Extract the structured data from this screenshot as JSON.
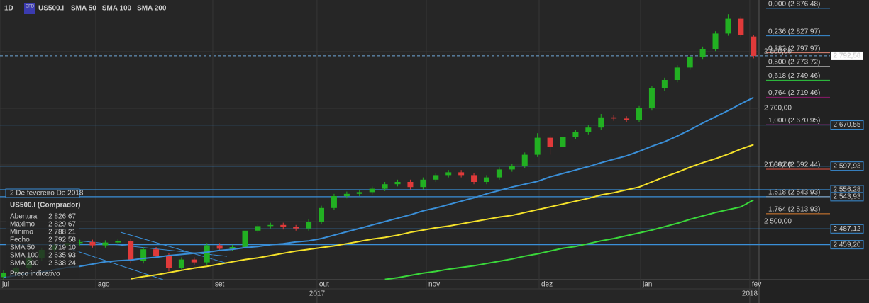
{
  "chart_data": {
    "type": "candlestick",
    "interval": "1D",
    "badge": "CFD",
    "title": "US500.I",
    "up_color": "#22b022",
    "down_color": "#e03a3a",
    "open": [
      2402,
      2410,
      2418,
      2435,
      2450,
      2458,
      2462,
      2464,
      2458,
      2463,
      2465,
      2430,
      2451,
      2440,
      2418,
      2433,
      2428,
      2458,
      2452,
      2455,
      2484,
      2492,
      2494,
      2490,
      2488,
      2500,
      2524,
      2545,
      2549,
      2552,
      2558,
      2566,
      2570,
      2561,
      2574,
      2582,
      2587,
      2582,
      2570,
      2578,
      2592,
      2598,
      2618,
      2648,
      2632,
      2650,
      2658,
      2666,
      2684,
      2682,
      2680,
      2700,
      2735,
      2750,
      2772,
      2790,
      2805,
      2832,
      2858,
      2826.67
    ],
    "high": [
      2414,
      2422,
      2439,
      2454,
      2462,
      2466,
      2468,
      2468,
      2467,
      2469,
      2469,
      2455,
      2455,
      2444,
      2437,
      2437,
      2462,
      2462,
      2459,
      2488,
      2496,
      2498,
      2498,
      2494,
      2504,
      2528,
      2549,
      2553,
      2556,
      2562,
      2570,
      2574,
      2574,
      2578,
      2586,
      2591,
      2591,
      2586,
      2582,
      2596,
      2602,
      2622,
      2656,
      2652,
      2654,
      2662,
      2670,
      2690,
      2688,
      2686,
      2704,
      2739,
      2754,
      2776,
      2794,
      2809,
      2836,
      2866,
      2862,
      2829.67
    ],
    "low": [
      2398,
      2406,
      2414,
      2431,
      2446,
      2454,
      2458,
      2454,
      2454,
      2459,
      2426,
      2426,
      2436,
      2412,
      2414,
      2424,
      2424,
      2448,
      2448,
      2451,
      2480,
      2488,
      2486,
      2484,
      2484,
      2496,
      2520,
      2541,
      2545,
      2548,
      2554,
      2562,
      2557,
      2557,
      2570,
      2578,
      2578,
      2566,
      2566,
      2574,
      2588,
      2594,
      2614,
      2618,
      2628,
      2646,
      2654,
      2662,
      2678,
      2676,
      2676,
      2696,
      2731,
      2746,
      2768,
      2786,
      2801,
      2828,
      2826,
      2788.21
    ],
    "close": [
      2410,
      2418,
      2435,
      2450,
      2458,
      2462,
      2464,
      2458,
      2463,
      2465,
      2430,
      2451,
      2440,
      2418,
      2433,
      2428,
      2458,
      2452,
      2455,
      2484,
      2492,
      2494,
      2490,
      2488,
      2500,
      2524,
      2545,
      2549,
      2552,
      2558,
      2566,
      2570,
      2561,
      2574,
      2582,
      2587,
      2582,
      2570,
      2578,
      2592,
      2598,
      2618,
      2648,
      2632,
      2650,
      2658,
      2666,
      2684,
      2682,
      2680,
      2700,
      2735,
      2750,
      2772,
      2790,
      2805,
      2832,
      2858,
      2830,
      2792.58
    ],
    "series": [
      {
        "name": "SMA 50",
        "color": "#3a8fd8",
        "values": [
          2401,
          2405,
          2409,
          2411,
          2415,
          2419,
          2421,
          2425,
          2429,
          2431,
          2432,
          2435,
          2437,
          2440,
          2442,
          2444,
          2446,
          2449,
          2451,
          2454,
          2456,
          2459,
          2461,
          2464,
          2466,
          2470,
          2476,
          2482,
          2488,
          2494,
          2500,
          2506,
          2512,
          2519,
          2524,
          2530,
          2536,
          2542,
          2549,
          2555,
          2561,
          2566,
          2571,
          2579,
          2585,
          2591,
          2597,
          2604,
          2610,
          2616,
          2624,
          2633,
          2641,
          2651,
          2662,
          2674,
          2685,
          2696,
          2708,
          2719.1
        ]
      },
      {
        "name": "SMA 100",
        "color": "#f5e22a",
        "values": [
          null,
          null,
          null,
          null,
          null,
          null,
          null,
          null,
          null,
          null,
          2399,
          2403,
          2406,
          2410,
          2414,
          2418,
          2421,
          2425,
          2429,
          2433,
          2436,
          2440,
          2444,
          2448,
          2451,
          2454,
          2457,
          2461,
          2465,
          2469,
          2472,
          2476,
          2481,
          2485,
          2489,
          2492,
          2496,
          2500,
          2504,
          2508,
          2511,
          2516,
          2521,
          2526,
          2531,
          2536,
          2541,
          2547,
          2551,
          2556,
          2561,
          2570,
          2579,
          2587,
          2596,
          2604,
          2611,
          2619,
          2628,
          2635.93
        ]
      },
      {
        "name": "SMA 200",
        "color": "#3ad83a",
        "values": [
          null,
          null,
          null,
          null,
          null,
          null,
          null,
          null,
          null,
          null,
          null,
          null,
          null,
          null,
          null,
          null,
          null,
          null,
          null,
          null,
          null,
          null,
          null,
          null,
          null,
          null,
          null,
          null,
          null,
          null,
          2398,
          2401,
          2405,
          2409,
          2412,
          2416,
          2419,
          2422,
          2426,
          2430,
          2434,
          2439,
          2443,
          2448,
          2453,
          2456,
          2461,
          2466,
          2470,
          2475,
          2480,
          2485,
          2491,
          2497,
          2504,
          2510,
          2516,
          2521,
          2526,
          2538.24
        ]
      }
    ],
    "xlim": [
      -0.28,
      59.43
    ],
    "xticks": [
      {
        "value": -0.28,
        "label": "jul"
      },
      {
        "value": 7.25,
        "label": "ago"
      },
      {
        "value": 16.46,
        "label": "set"
      },
      {
        "value": 24.66,
        "label": "out"
      },
      {
        "value": 33.26,
        "label": "nov"
      },
      {
        "value": 42.13,
        "label": "dez"
      },
      {
        "value": 50.11,
        "label": "jan"
      },
      {
        "value": 58.7,
        "label": "fev"
      }
    ],
    "year_ticks": [
      {
        "value": 24.66,
        "label": "2017"
      },
      {
        "value": 58.7,
        "label": "2018"
      }
    ],
    "ylim": [
      2397.5,
      2891.25
    ],
    "yticks": [
      {
        "value": 2500,
        "label": "2 500,00"
      },
      {
        "value": 2600,
        "label": "2 600,00"
      },
      {
        "value": 2700,
        "label": "2 700,00"
      },
      {
        "value": 2800,
        "label": "2 800,00"
      }
    ],
    "grid": true,
    "fib_levels": [
      {
        "value": 2876.48,
        "label": "0,000 (2 876,48)",
        "color": "#3a8fd8"
      },
      {
        "value": 2827.97,
        "label": "0,236 (2 827,97)",
        "color": "#3a8fd8"
      },
      {
        "value": 2797.97,
        "label": "0,382 (2 797,97)",
        "color": "#e08878"
      },
      {
        "value": 2773.72,
        "label": "0,500 (2 773,72)",
        "color": "#ffffff"
      },
      {
        "value": 2749.46,
        "label": "0,618 (2 749,46)",
        "color": "#2ecc40"
      },
      {
        "value": 2719.46,
        "label": "0,764 (2 719,46)",
        "color": "#8b1a6b"
      },
      {
        "value": 2670.95,
        "label": "1,000 (2 670,95)",
        "color": "#c030c0"
      },
      {
        "value": 2592.44,
        "label": "1,382 (2 592,44)",
        "color": "#e05040"
      },
      {
        "value": 2543.93,
        "label": "1,618 (2 543,93)",
        "color": "#8fa8c0"
      },
      {
        "value": 2513.93,
        "label": "1,764 (2 513,93)",
        "color": "#e08030"
      }
    ],
    "price_lines": [
      {
        "value": 2670.55,
        "label": "2 670,55"
      },
      {
        "value": 2597.93,
        "label": "2 597,93"
      },
      {
        "value": 2556.28,
        "label": "2 556,28"
      },
      {
        "value": 2543.93,
        "label": "2 543,93"
      },
      {
        "value": 2487.12,
        "label": "2 487,12"
      },
      {
        "value": 2459.2,
        "label": "2 459,20"
      }
    ],
    "current_price": {
      "value": 2792.58,
      "label": "2 792,58"
    },
    "info_panel": {
      "date": "2 De fevereiro De 2018",
      "title": "US500.I (Comprador)",
      "rows": [
        {
          "label": "Abertura",
          "value": "2 826,67"
        },
        {
          "label": "Máximo",
          "value": "2 829,67"
        },
        {
          "label": "Mínimo",
          "value": "2 788,21"
        },
        {
          "label": "Fecho",
          "value": "2 792,58"
        },
        {
          "label": "SMA 50",
          "value": "2 719,10",
          "color": "#3a8fd8"
        },
        {
          "label": "SMA 100",
          "value": "2 635,93",
          "color": "#f5e22a"
        },
        {
          "label": "SMA 200",
          "value": "2 538,24",
          "color": "#3ad83a"
        }
      ],
      "note": "Preço indicativo"
    }
  }
}
